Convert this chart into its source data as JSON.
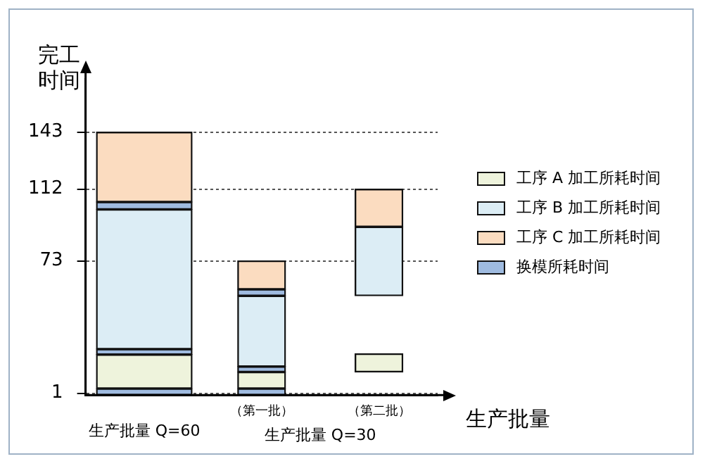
{
  "chart_data": {
    "type": "bar",
    "xlabel": "生产批量",
    "ylabel": "完工时间",
    "categories": [
      "生产批量 Q=60",
      "（第一批）",
      "（第二批）"
    ],
    "series": [
      {
        "name": "工序 A 加工所耗时间",
        "color": "#eef3dc",
        "base": [
          3.5,
          3.5,
          12.5
        ],
        "values": [
          18.5,
          9,
          10
        ]
      },
      {
        "name": "工序 B 加工所耗时间",
        "color": "#dcedf5",
        "base": [
          25,
          15.5,
          54
        ],
        "values": [
          76,
          38.5,
          37.5
        ]
      },
      {
        "name": "工序 C 加工所耗时间",
        "color": "#fbdcc0",
        "base": [
          105,
          57.5,
          91.5
        ],
        "values": [
          38,
          15.5,
          20.5
        ]
      },
      {
        "name": "换模所耗时间",
        "color": "#9fbbe0",
        "base": [
          0,
          0,
          null
        ],
        "values": [
          3.5,
          3.5,
          null
        ]
      },
      {
        "color": "#9fbbe0",
        "base": [
          22,
          12.5,
          null
        ],
        "values": [
          3,
          3,
          null
        ]
      },
      {
        "color": "#9fbbe0",
        "base": [
          101,
          54,
          null
        ],
        "values": [
          4,
          3.5,
          null
        ]
      }
    ],
    "ylim": [
      0,
      172
    ],
    "yticks": [
      1,
      73,
      112,
      143
    ],
    "grid": "y",
    "line_style": "dotted",
    "legend": "right",
    "annotations": [
      "生产批量 Q=30"
    ]
  }
}
